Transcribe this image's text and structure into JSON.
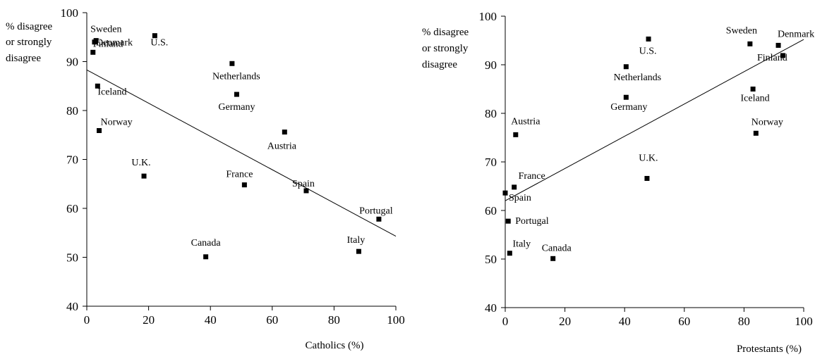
{
  "chart_data": [
    {
      "type": "scatter",
      "title": "",
      "ylabel_lines": [
        "% disagree",
        "or strongly",
        "disagree"
      ],
      "xlabel": "Catholics (%)",
      "xlim": [
        0,
        100
      ],
      "ylim": [
        40,
        100
      ],
      "xticks": [
        0,
        20,
        40,
        60,
        80,
        100
      ],
      "yticks": [
        40,
        50,
        60,
        70,
        80,
        90,
        100
      ],
      "grid": false,
      "points": [
        {
          "label": "Sweden",
          "x": 3,
          "y": 94.3
        },
        {
          "label": "Denmark",
          "x": 2.5,
          "y": 94
        },
        {
          "label": "U.S.",
          "x": 22,
          "y": 95.3
        },
        {
          "label": "Finland",
          "x": 2,
          "y": 91.9
        },
        {
          "label": "Iceland",
          "x": 3.5,
          "y": 85
        },
        {
          "label": "Norway",
          "x": 4,
          "y": 75.9
        },
        {
          "label": "Netherlands",
          "x": 47,
          "y": 89.6
        },
        {
          "label": "Germany",
          "x": 48.5,
          "y": 83.3
        },
        {
          "label": "Austria",
          "x": 64,
          "y": 75.6
        },
        {
          "label": "U.K.",
          "x": 18.5,
          "y": 66.6
        },
        {
          "label": "France",
          "x": 51,
          "y": 64.8
        },
        {
          "label": "Spain",
          "x": 71,
          "y": 63.6
        },
        {
          "label": "Portugal",
          "x": 94.5,
          "y": 57.8
        },
        {
          "label": "Canada",
          "x": 38.5,
          "y": 50.1
        },
        {
          "label": "Italy",
          "x": 88,
          "y": 51.2
        }
      ],
      "trendline": {
        "x": [
          0,
          100
        ],
        "y": [
          88.3,
          54.3
        ]
      }
    },
    {
      "type": "scatter",
      "title": "",
      "ylabel_lines": [
        "% disagree",
        "or strongly",
        "disagree"
      ],
      "xlabel": "Protestants (%)",
      "xlim": [
        0,
        100
      ],
      "ylim": [
        40,
        100
      ],
      "xticks": [
        0,
        20,
        40,
        60,
        80,
        100
      ],
      "yticks": [
        40,
        50,
        60,
        70,
        80,
        90,
        100
      ],
      "grid": false,
      "points": [
        {
          "label": "Sweden",
          "x": 82,
          "y": 94.3
        },
        {
          "label": "Denmark",
          "x": 91.5,
          "y": 94
        },
        {
          "label": "Finland",
          "x": 93,
          "y": 91.9
        },
        {
          "label": "U.S.",
          "x": 48,
          "y": 95.3
        },
        {
          "label": "Netherlands",
          "x": 40.5,
          "y": 89.6
        },
        {
          "label": "Germany",
          "x": 40.5,
          "y": 83.3
        },
        {
          "label": "Iceland",
          "x": 83,
          "y": 85
        },
        {
          "label": "Norway",
          "x": 84,
          "y": 75.9
        },
        {
          "label": "Austria",
          "x": 3.5,
          "y": 75.6
        },
        {
          "label": "U.K.",
          "x": 47.5,
          "y": 66.6
        },
        {
          "label": "France",
          "x": 3,
          "y": 64.8
        },
        {
          "label": "Spain",
          "x": 0,
          "y": 63.6
        },
        {
          "label": "Portugal",
          "x": 1,
          "y": 57.8
        },
        {
          "label": "Italy",
          "x": 1.5,
          "y": 51.2
        },
        {
          "label": "Canada",
          "x": 16,
          "y": 50.1
        }
      ],
      "trendline": {
        "x": [
          0,
          100
        ],
        "y": [
          62,
          95.2
        ]
      }
    }
  ]
}
